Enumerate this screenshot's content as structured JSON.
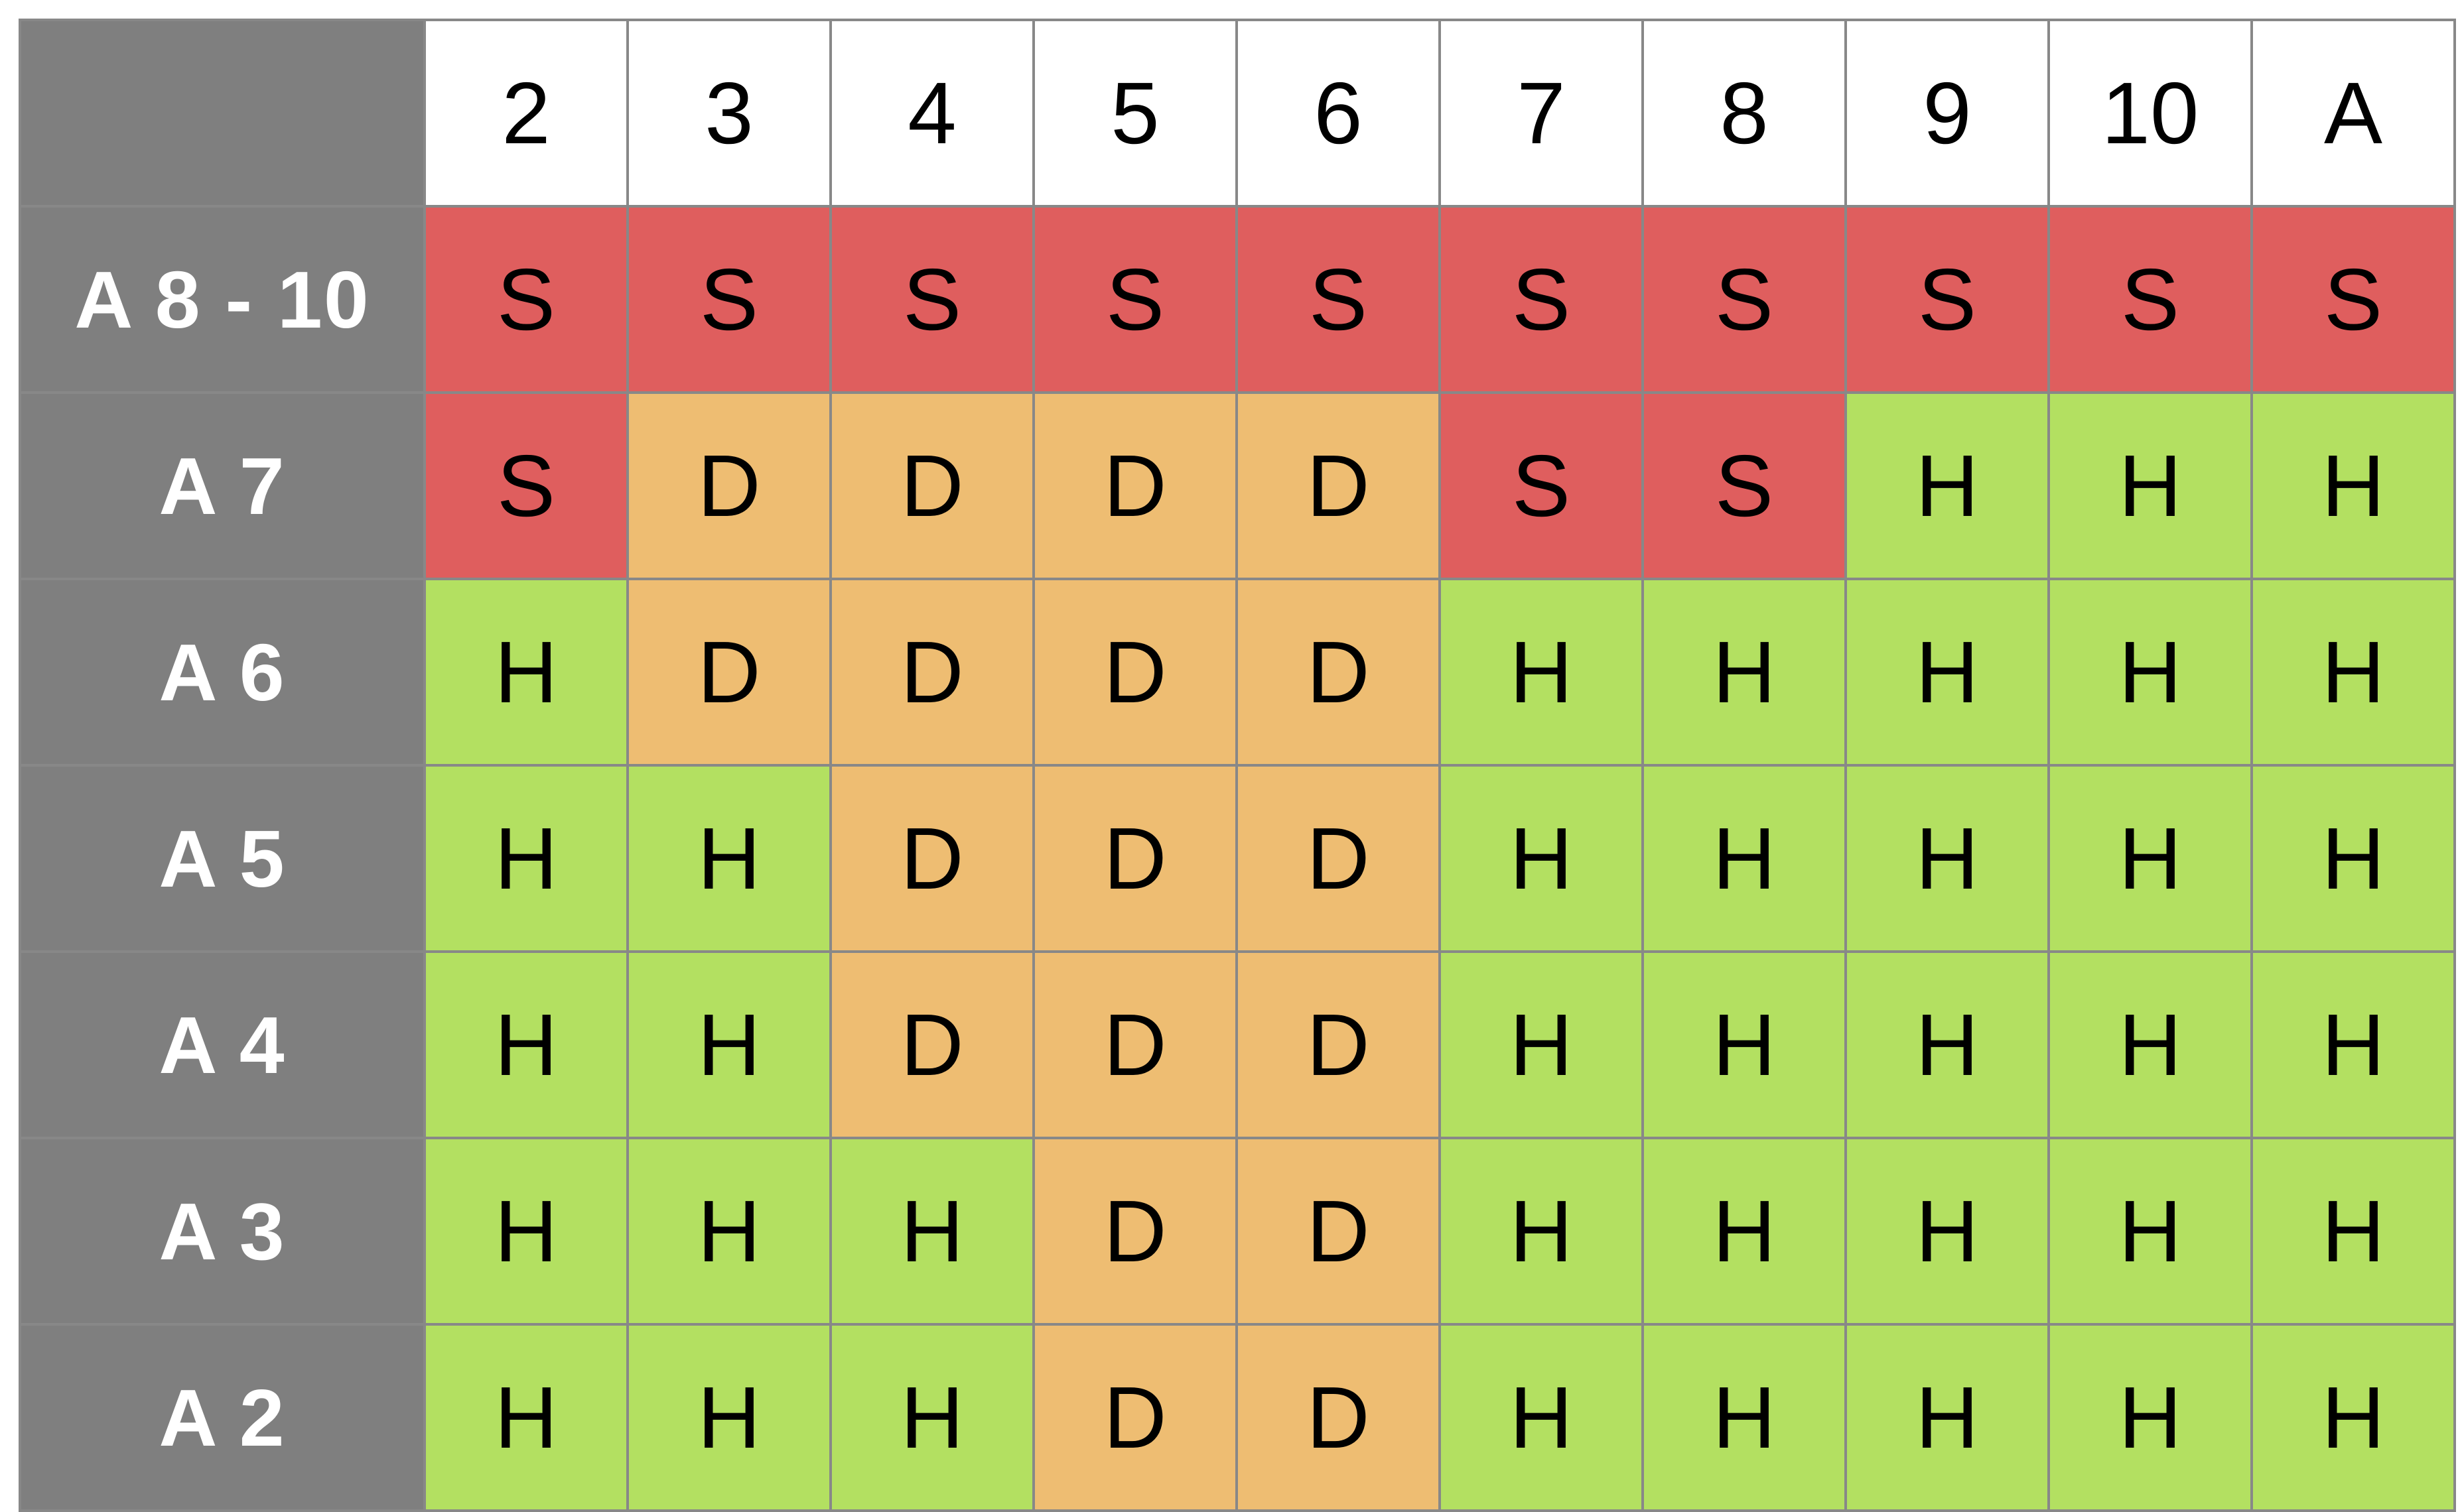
{
  "colors": {
    "S": "#df5e5e",
    "D": "#eebd72",
    "H": "#b3e061",
    "row_header_bg": "#7f7f7f",
    "grid": "#888888"
  },
  "dealer_cards": [
    "2",
    "3",
    "4",
    "5",
    "6",
    "7",
    "8",
    "9",
    "10",
    "A"
  ],
  "rows": [
    {
      "label": "A 8 - 10",
      "actions": [
        "S",
        "S",
        "S",
        "S",
        "S",
        "S",
        "S",
        "S",
        "S",
        "S"
      ]
    },
    {
      "label": "A 7",
      "actions": [
        "S",
        "D",
        "D",
        "D",
        "D",
        "S",
        "S",
        "H",
        "H",
        "H"
      ]
    },
    {
      "label": "A 6",
      "actions": [
        "H",
        "D",
        "D",
        "D",
        "D",
        "H",
        "H",
        "H",
        "H",
        "H"
      ]
    },
    {
      "label": "A 5",
      "actions": [
        "H",
        "H",
        "D",
        "D",
        "D",
        "H",
        "H",
        "H",
        "H",
        "H"
      ]
    },
    {
      "label": "A 4",
      "actions": [
        "H",
        "H",
        "D",
        "D",
        "D",
        "H",
        "H",
        "H",
        "H",
        "H"
      ]
    },
    {
      "label": "A 3",
      "actions": [
        "H",
        "H",
        "H",
        "D",
        "D",
        "H",
        "H",
        "H",
        "H",
        "H"
      ]
    },
    {
      "label": "A 2",
      "actions": [
        "H",
        "H",
        "H",
        "D",
        "D",
        "H",
        "H",
        "H",
        "H",
        "H"
      ]
    }
  ]
}
